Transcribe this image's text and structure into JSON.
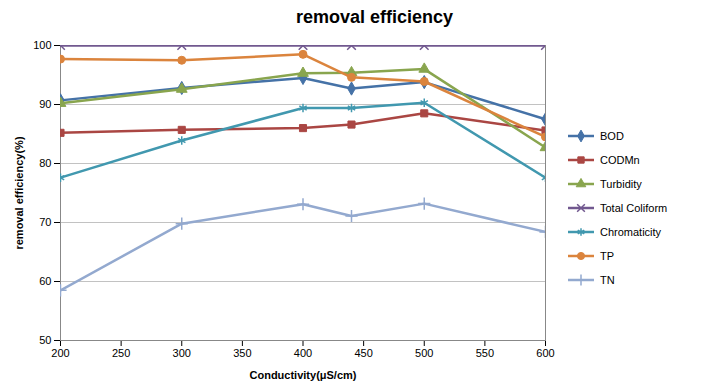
{
  "chart_data": {
    "type": "line",
    "title": "removal efficiency",
    "x_label": "Conductivity(μS/cm)",
    "y_label": "removal efficiency(%)",
    "x": [
      200,
      300,
      400,
      440,
      500,
      600
    ],
    "xlim": [
      200,
      600
    ],
    "xticks": [
      200,
      250,
      300,
      350,
      400,
      450,
      500,
      550,
      600
    ],
    "ylim": [
      50,
      100
    ],
    "yticks": [
      50,
      60,
      70,
      80,
      90,
      100
    ],
    "grid": true,
    "legend": "right",
    "series": [
      {
        "name": "BOD",
        "color": "#4572a7",
        "marker": "diamond",
        "values": [
          90.7,
          92.8,
          94.5,
          92.7,
          93.8,
          87.5
        ]
      },
      {
        "name": "CODMn",
        "color": "#aa4643",
        "marker": "square",
        "values": [
          85.2,
          85.7,
          86.0,
          86.6,
          88.5,
          85.6
        ]
      },
      {
        "name": "Turbidity",
        "color": "#89a54e",
        "marker": "triangle",
        "values": [
          90.2,
          92.6,
          95.3,
          95.4,
          96.0,
          82.7
        ]
      },
      {
        "name": "Total Coliform",
        "color": "#71588f",
        "marker": "x",
        "values": [
          100,
          100,
          100,
          100,
          100,
          100
        ]
      },
      {
        "name": "Chromaticity",
        "color": "#4198af",
        "marker": "star",
        "values": [
          77.6,
          83.9,
          89.4,
          89.4,
          90.3,
          77.6
        ]
      },
      {
        "name": "TP",
        "color": "#db843d",
        "marker": "circle",
        "values": [
          97.7,
          97.5,
          98.5,
          94.6,
          93.9,
          84.5
        ]
      },
      {
        "name": "TN",
        "color": "#93a9cf",
        "marker": "plus",
        "values": [
          58.5,
          69.8,
          73.1,
          71.1,
          73.2,
          68.4
        ]
      }
    ]
  }
}
